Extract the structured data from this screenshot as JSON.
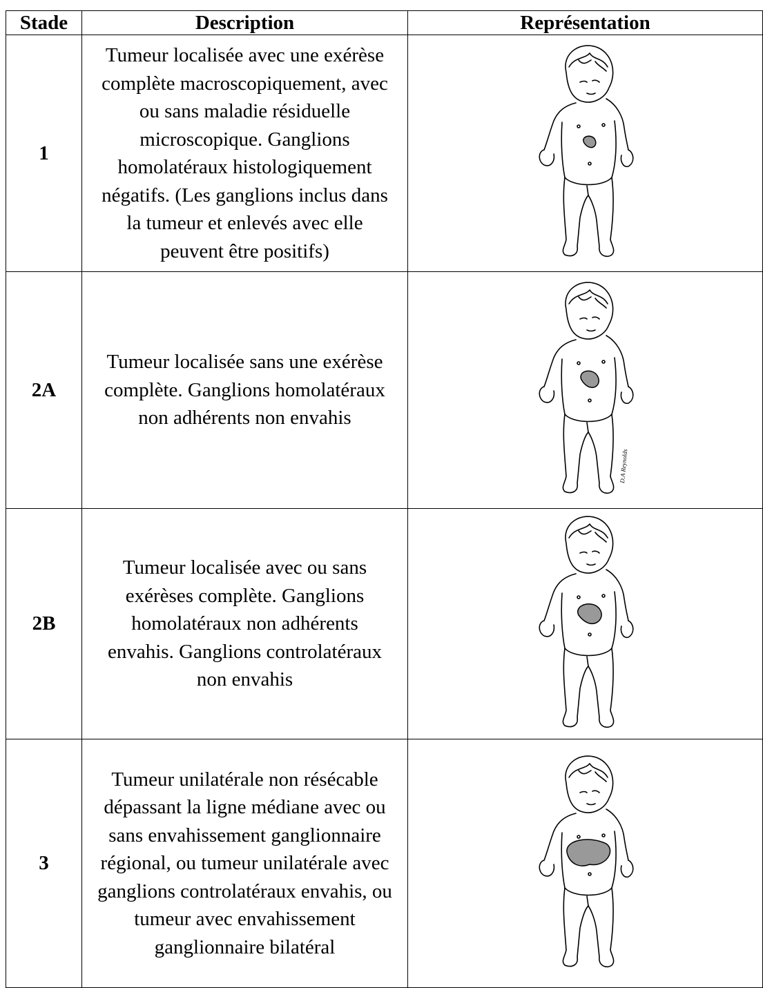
{
  "table": {
    "header": [
      "Stade",
      "Description",
      "Représentation"
    ],
    "rows": [
      {
        "stage": "1",
        "description": [
          "Tumeur localisée avec une exérèse",
          "complète macroscopiquement, avec",
          "ou sans maladie résiduelle",
          "microscopique. Ganglions",
          "homolatéraux histologiquement",
          "négatifs. (Les ganglions inclus dans",
          "la tumeur et enlevés avec elle",
          "peuvent être positifs)"
        ]
      },
      {
        "stage": "2A",
        "description": [
          "Tumeur localisée sans une exérèse",
          "complète. Ganglions homolatéraux",
          "non adhérents non envahis"
        ],
        "signature": "D.A Reynolds"
      },
      {
        "stage": "2B",
        "description": [
          "Tumeur localisée avec ou sans",
          "exérèses complète. Ganglions",
          "homolatéraux non adhérents",
          "envahis. Ganglions controlatéraux",
          "non envahis"
        ]
      },
      {
        "stage": "3",
        "description": [
          "Tumeur unilatérale non résécable",
          "dépassant la ligne médiane avec ou",
          "sans envahissement ganglionnaire",
          "régional, ou tumeur unilatérale avec",
          "ganglions controlatéraux envahis, ou",
          "tumeur avec envahissement",
          "ganglionnaire bilatéral"
        ]
      }
    ]
  }
}
